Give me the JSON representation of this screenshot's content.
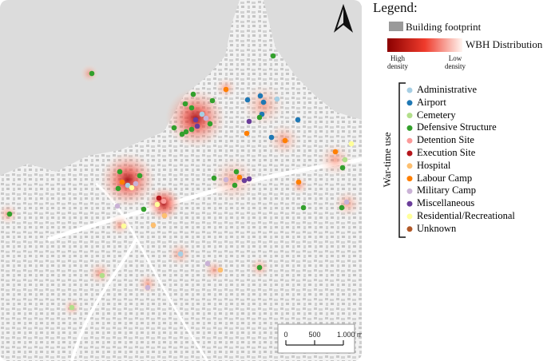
{
  "legend": {
    "title": "Legend:",
    "building_footprint": "Building footprint",
    "wbh_distribution": "WBH Distribution",
    "high_density": "High density",
    "low_density": "Low density",
    "war_time_use": "War-time use",
    "categories": [
      {
        "name": "Administrative",
        "color": "#a6cee3"
      },
      {
        "name": "Airport",
        "color": "#1f78b4"
      },
      {
        "name": "Cemetery",
        "color": "#b2df8a"
      },
      {
        "name": "Defensive Structure",
        "color": "#33a02c"
      },
      {
        "name": "Detention Site",
        "color": "#fb9a99"
      },
      {
        "name": "Execution Site",
        "color": "#b5161b"
      },
      {
        "name": "Hospital",
        "color": "#fdbf6f"
      },
      {
        "name": "Labour Camp",
        "color": "#ff7f00"
      },
      {
        "name": "Military Camp",
        "color": "#cab2d6"
      },
      {
        "name": "Miscellaneous",
        "color": "#6a3d9a"
      },
      {
        "name": "Residential/Recreational",
        "color": "#ffff99"
      },
      {
        "name": "Unknown",
        "color": "#b15928"
      }
    ]
  },
  "scale_bar": {
    "ticks": [
      {
        "value": 0,
        "label": "0"
      },
      {
        "value": 500,
        "label": "500"
      },
      {
        "value": 1000,
        "label": "1.000 m"
      }
    ]
  }
}
